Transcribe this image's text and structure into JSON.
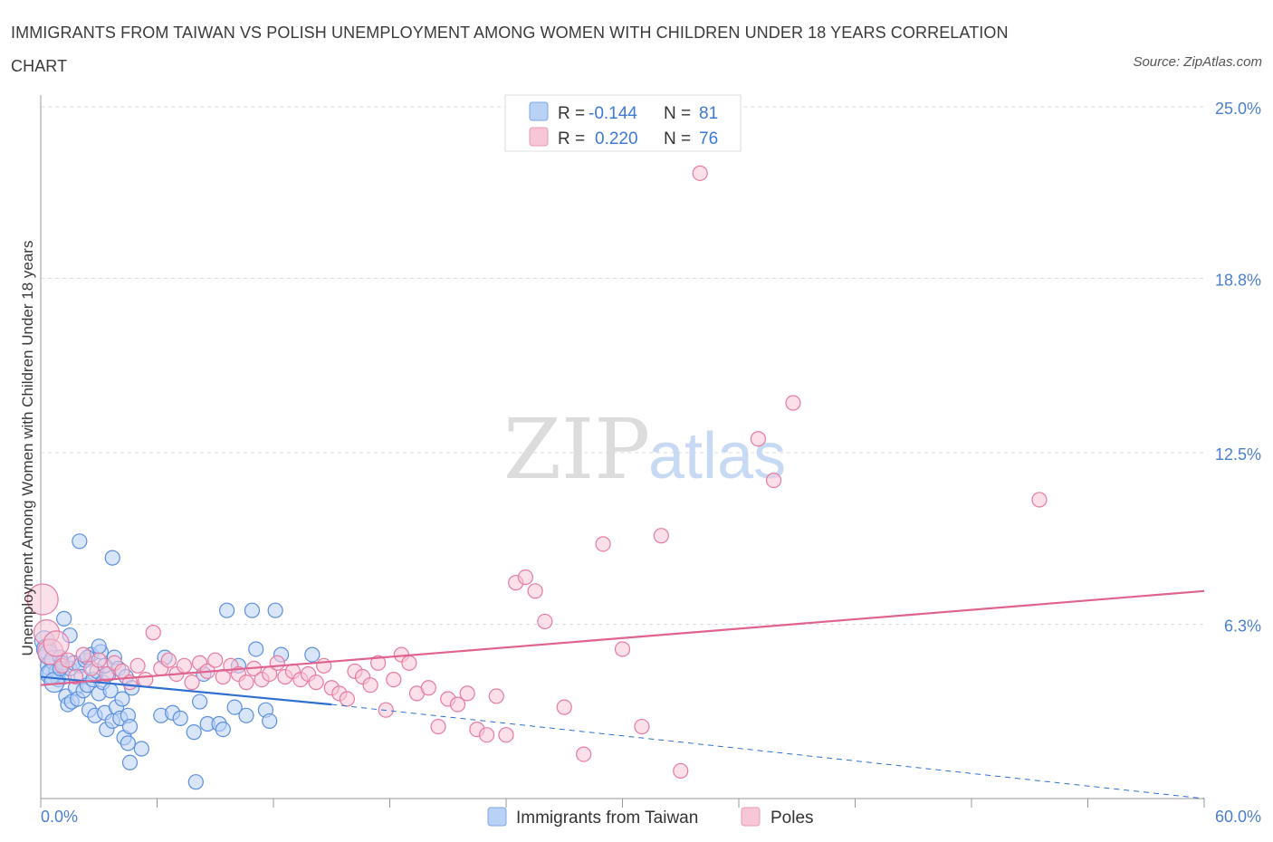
{
  "header": {
    "title": "IMMIGRANTS FROM TAIWAN VS POLISH UNEMPLOYMENT AMONG WOMEN WITH CHILDREN UNDER 18 YEARS CORRELATION CHART",
    "source": "Source: ZipAtlas.com"
  },
  "watermark": {
    "zip": "ZIP",
    "atlas": "atlas"
  },
  "colors": {
    "blue": "#5b8fe0",
    "blue_fill": "#b9d1f5",
    "blue_line": "#2f6fd0",
    "pink": "#e77aa0",
    "pink_fill": "#f7c7d7",
    "pink_line": "#e0628e",
    "grid": "#dddddd",
    "tick_text": "#4a7fd0"
  },
  "chart_data": {
    "type": "scatter",
    "title": "IMMIGRANTS FROM TAIWAN VS POLISH UNEMPLOYMENT AMONG WOMEN WITH CHILDREN UNDER 18 YEARS CORRELATION CHART",
    "xlabel": "",
    "ylabel": "Unemployment Among Women with Children Under 18 years",
    "xlim": [
      0,
      60
    ],
    "ylim": [
      0,
      25
    ],
    "x_tick_labels": [
      "0.0%",
      "60.0%"
    ],
    "y_ticks": [
      6.3,
      12.5,
      18.8,
      25.0
    ],
    "y_tick_labels": [
      "6.3%",
      "12.5%",
      "18.8%",
      "25.0%"
    ],
    "grid": true,
    "legend": {
      "placement": "top-center",
      "entries": [
        {
          "r_label": "R =",
          "r_value": "-0.144",
          "n_label": "N =",
          "n_value": "81"
        },
        {
          "r_label": "R =",
          "r_value": "0.220",
          "n_label": "N =",
          "n_value": "76"
        }
      ]
    },
    "bottom_legend": [
      "Immigrants from Taiwan",
      "Poles"
    ],
    "series": [
      {
        "name": "Immigrants from Taiwan",
        "color": "#5b8fe0",
        "trend": {
          "x0": 0,
          "y0": 4.4,
          "x1": 15,
          "y1": 3.4,
          "dash_to_x": 60,
          "dash_to_y": 0.0
        },
        "points": [
          [
            0.2,
            5.7
          ],
          [
            0.3,
            5.4
          ],
          [
            0.4,
            5.2
          ],
          [
            0.5,
            4.8
          ],
          [
            0.6,
            4.5
          ],
          [
            0.7,
            5.0
          ],
          [
            0.8,
            4.6
          ],
          [
            0.9,
            4.3
          ],
          [
            1.0,
            5.1
          ],
          [
            1.1,
            4.9
          ],
          [
            1.2,
            4.4
          ],
          [
            1.3,
            3.7
          ],
          [
            1.4,
            3.4
          ],
          [
            1.5,
            4.7
          ],
          [
            1.6,
            3.5
          ],
          [
            1.7,
            4.9
          ],
          [
            1.8,
            4.0
          ],
          [
            1.9,
            3.6
          ],
          [
            2.0,
            4.8
          ],
          [
            2.1,
            4.4
          ],
          [
            2.2,
            3.9
          ],
          [
            2.3,
            5.0
          ],
          [
            2.4,
            4.1
          ],
          [
            2.5,
            3.2
          ],
          [
            2.6,
            5.2
          ],
          [
            2.7,
            4.3
          ],
          [
            2.8,
            3.0
          ],
          [
            2.9,
            4.6
          ],
          [
            3.0,
            3.8
          ],
          [
            3.1,
            5.3
          ],
          [
            3.2,
            4.2
          ],
          [
            3.3,
            3.1
          ],
          [
            3.4,
            2.5
          ],
          [
            3.5,
            4.5
          ],
          [
            3.6,
            3.9
          ],
          [
            3.7,
            2.8
          ],
          [
            3.8,
            5.1
          ],
          [
            3.9,
            3.3
          ],
          [
            4.0,
            4.7
          ],
          [
            4.1,
            2.9
          ],
          [
            4.2,
            3.6
          ],
          [
            4.3,
            2.2
          ],
          [
            4.4,
            4.4
          ],
          [
            4.5,
            3.0
          ],
          [
            4.6,
            2.6
          ],
          [
            4.7,
            4.0
          ],
          [
            1.2,
            6.5
          ],
          [
            3.0,
            5.5
          ],
          [
            2.0,
            9.3
          ],
          [
            3.7,
            8.7
          ],
          [
            4.5,
            2.0
          ],
          [
            4.6,
            1.3
          ],
          [
            5.2,
            1.8
          ],
          [
            6.2,
            3.0
          ],
          [
            6.8,
            3.1
          ],
          [
            7.2,
            2.9
          ],
          [
            7.9,
            2.4
          ],
          [
            8.0,
            0.6
          ],
          [
            8.2,
            3.5
          ],
          [
            8.4,
            4.5
          ],
          [
            8.6,
            2.7
          ],
          [
            9.2,
            2.7
          ],
          [
            9.4,
            2.5
          ],
          [
            10.0,
            3.3
          ],
          [
            10.6,
            3.0
          ],
          [
            10.2,
            4.8
          ],
          [
            11.6,
            3.2
          ],
          [
            11.8,
            2.8
          ],
          [
            10.9,
            6.8
          ],
          [
            12.1,
            6.8
          ],
          [
            6.4,
            5.1
          ],
          [
            9.6,
            6.8
          ],
          [
            11.1,
            5.4
          ],
          [
            12.4,
            5.2
          ],
          [
            14.0,
            5.2
          ],
          [
            0.5,
            4.5
          ],
          [
            0.7,
            4.2
          ],
          [
            1.5,
            5.9
          ],
          [
            1.0,
            4.7
          ],
          [
            2.4,
            5.1
          ],
          [
            3.3,
            4.8
          ]
        ]
      },
      {
        "name": "Poles",
        "color": "#e77aa0",
        "trend": {
          "x0": 0,
          "y0": 4.1,
          "x1": 60,
          "y1": 7.5
        },
        "points": [
          [
            0.1,
            7.2
          ],
          [
            0.3,
            6.0
          ],
          [
            0.5,
            5.3
          ],
          [
            0.8,
            5.6
          ],
          [
            1.1,
            4.8
          ],
          [
            1.4,
            5.0
          ],
          [
            1.8,
            4.4
          ],
          [
            2.2,
            5.2
          ],
          [
            2.6,
            4.7
          ],
          [
            3.0,
            5.0
          ],
          [
            3.4,
            4.5
          ],
          [
            3.8,
            4.9
          ],
          [
            4.2,
            4.6
          ],
          [
            4.6,
            4.2
          ],
          [
            5.0,
            4.8
          ],
          [
            5.4,
            4.3
          ],
          [
            5.8,
            6.0
          ],
          [
            6.2,
            4.7
          ],
          [
            6.6,
            5.0
          ],
          [
            7.0,
            4.5
          ],
          [
            7.4,
            4.8
          ],
          [
            7.8,
            4.2
          ],
          [
            8.2,
            4.9
          ],
          [
            8.6,
            4.6
          ],
          [
            9.0,
            5.0
          ],
          [
            9.4,
            4.4
          ],
          [
            9.8,
            4.8
          ],
          [
            10.2,
            4.5
          ],
          [
            10.6,
            4.2
          ],
          [
            11.0,
            4.7
          ],
          [
            11.4,
            4.3
          ],
          [
            11.8,
            4.5
          ],
          [
            12.2,
            4.9
          ],
          [
            12.6,
            4.4
          ],
          [
            13.0,
            4.6
          ],
          [
            13.4,
            4.3
          ],
          [
            13.8,
            4.5
          ],
          [
            14.2,
            4.2
          ],
          [
            14.6,
            4.8
          ],
          [
            15.0,
            4.0
          ],
          [
            15.4,
            3.8
          ],
          [
            15.8,
            3.6
          ],
          [
            16.2,
            4.6
          ],
          [
            16.6,
            4.4
          ],
          [
            17.0,
            4.1
          ],
          [
            17.4,
            4.9
          ],
          [
            17.8,
            3.2
          ],
          [
            18.2,
            4.3
          ],
          [
            18.6,
            5.2
          ],
          [
            19.0,
            4.9
          ],
          [
            19.4,
            3.8
          ],
          [
            20.0,
            4.0
          ],
          [
            20.5,
            2.6
          ],
          [
            21.0,
            3.6
          ],
          [
            21.5,
            3.4
          ],
          [
            22.0,
            3.8
          ],
          [
            22.5,
            2.5
          ],
          [
            23.0,
            2.3
          ],
          [
            23.5,
            3.7
          ],
          [
            24.0,
            2.3
          ],
          [
            24.5,
            7.8
          ],
          [
            25.0,
            8.0
          ],
          [
            25.5,
            7.5
          ],
          [
            26.0,
            6.4
          ],
          [
            27.0,
            3.3
          ],
          [
            28.0,
            1.6
          ],
          [
            29.0,
            9.2
          ],
          [
            30.0,
            5.4
          ],
          [
            31.0,
            2.6
          ],
          [
            32.0,
            9.5
          ],
          [
            33.0,
            1.0
          ],
          [
            34.0,
            22.6
          ],
          [
            37.0,
            13.0
          ],
          [
            37.8,
            11.5
          ],
          [
            38.8,
            14.3
          ],
          [
            51.5,
            10.8
          ]
        ]
      }
    ]
  }
}
